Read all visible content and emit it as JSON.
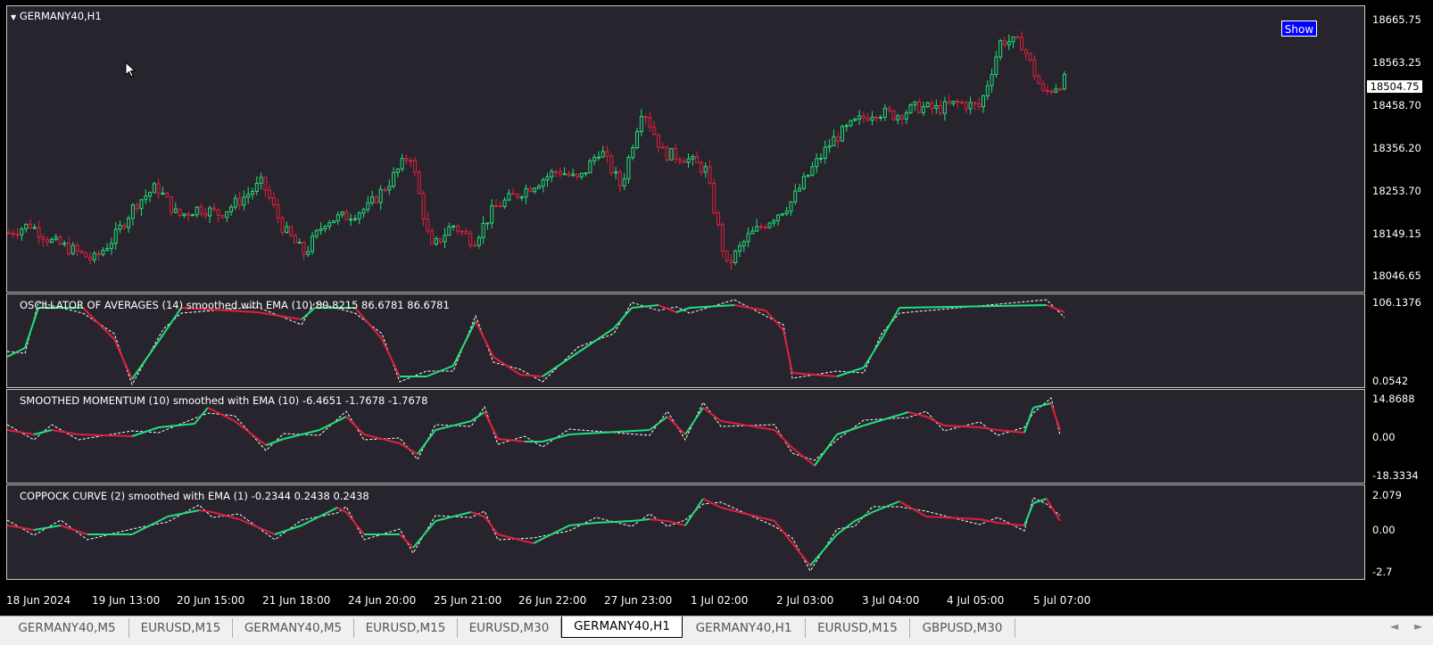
{
  "colors": {
    "background": "#27242d",
    "up": "#20e07a",
    "down": "#e0203c",
    "dashed": "#ffffff",
    "axis_bg": "#000000"
  },
  "main": {
    "title": "GERMANY40,H1",
    "show_label": "Show",
    "current_price": "18504.75",
    "price_ticks": [
      "18665.75",
      "18563.25",
      "18458.70",
      "18356.20",
      "18253.70",
      "18149.15",
      "18046.65"
    ]
  },
  "indicators": [
    {
      "label": "OSCILLATOR OF AVERAGES (14) smoothed with EMA (10) 80.8215 86.6781 86.6781",
      "ticks": [
        "106.1376",
        "0.0542"
      ]
    },
    {
      "label": "SMOOTHED MOMENTUM (10) smoothed with EMA (10) -6.4651 -1.7678 -1.7678",
      "ticks": [
        "14.8688",
        "0.00",
        "-18.3334"
      ]
    },
    {
      "label": "COPPOCK CURVE (2) smoothed with EMA (1) -0.2344 0.2438 0.2438",
      "ticks": [
        "2.079",
        "0.00",
        "-2.7"
      ]
    }
  ],
  "time_labels": [
    "18 Jun 2024",
    "19 Jun 13:00",
    "20 Jun 15:00",
    "21 Jun 18:00",
    "24 Jun 20:00",
    "25 Jun 21:00",
    "26 Jun 22:00",
    "27 Jun 23:00",
    "1 Jul 02:00",
    "2 Jul 03:00",
    "3 Jul 04:00",
    "4 Jul 05:00",
    "5 Jul 07:00"
  ],
  "tabs": [
    "GERMANY40,M5",
    "EURUSD,M15",
    "GERMANY40,M5",
    "EURUSD,M15",
    "EURUSD,M30",
    "GERMANY40,H1",
    "GERMANY40,H1",
    "EURUSD,M15",
    "GBPUSD,M30"
  ],
  "active_tab_index": 5,
  "nav": {
    "left": "◄",
    "right": "►"
  },
  "chart_data": [
    {
      "type": "line",
      "title": "GERMANY40,H1",
      "x_labels": [
        "18 Jun 2024",
        "19 Jun 13:00",
        "20 Jun 15:00",
        "21 Jun 18:00",
        "24 Jun 20:00",
        "25 Jun 21:00",
        "26 Jun 22:00",
        "27 Jun 23:00",
        "1 Jul 02:00",
        "2 Jul 03:00",
        "3 Jul 04:00",
        "4 Jul 05:00",
        "5 Jul 07:00"
      ],
      "series": [
        {
          "values": [
            18140,
            18160,
            18120,
            18100,
            18075,
            18130,
            18210,
            18250,
            18180,
            18200,
            18185,
            18220,
            18260,
            18150,
            18090,
            18170,
            18180,
            18200,
            18260,
            18330,
            18100,
            18160,
            18120,
            18200,
            18230,
            18260,
            18290,
            18265,
            18340,
            18250,
            18440,
            18330,
            18320,
            18290,
            18060,
            18130,
            18170,
            18210,
            18290,
            18360,
            18400,
            18430,
            18420,
            18440,
            18435,
            18450,
            18440,
            18600,
            18590,
            18470,
            18504
          ]
        }
      ],
      "ylim": [
        18000,
        18680
      ]
    }
  ]
}
